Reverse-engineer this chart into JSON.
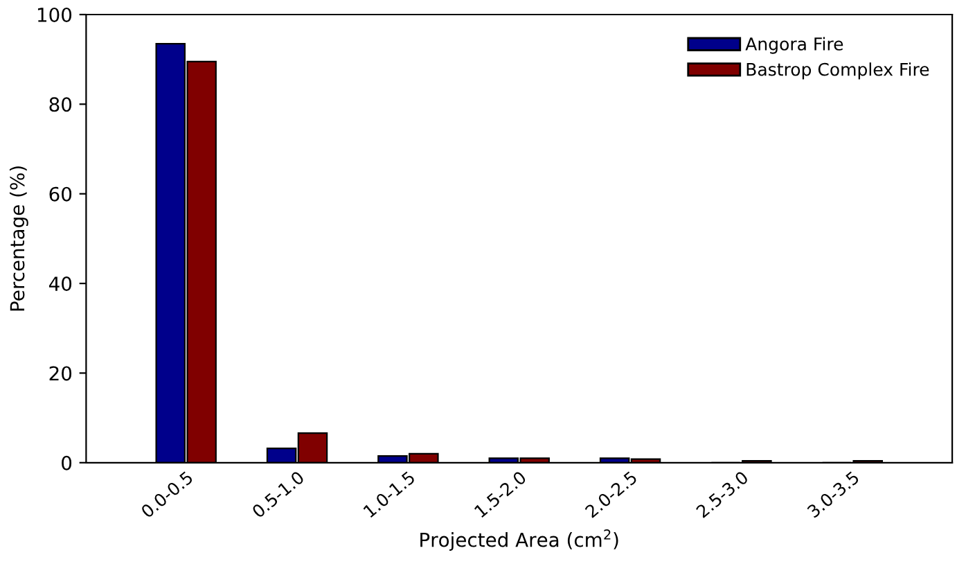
{
  "chart_data": {
    "type": "bar",
    "xlabel": "Projected Area (cm$^{2}$)",
    "ylabel": "Percentage (%)",
    "categories": [
      "0.0-0.5",
      "0.5-1.0",
      "1.0-1.5",
      "1.5-2.0",
      "2.0-2.5",
      "2.5-3.0",
      "3.0-3.5"
    ],
    "series": [
      {
        "name": "Angora Fire",
        "color": "#00008b",
        "values": [
          93.5,
          3.2,
          1.5,
          1.0,
          1.0,
          0,
          0
        ]
      },
      {
        "name": "Bastrop Complex Fire",
        "color": "#800000",
        "values": [
          89.5,
          6.6,
          2.0,
          1.0,
          0.8,
          0.4,
          0.4
        ]
      }
    ],
    "ylim": [
      0,
      100
    ],
    "yticks": [
      0,
      20,
      40,
      60,
      80,
      100
    ],
    "grid": false,
    "legend": "top right"
  }
}
